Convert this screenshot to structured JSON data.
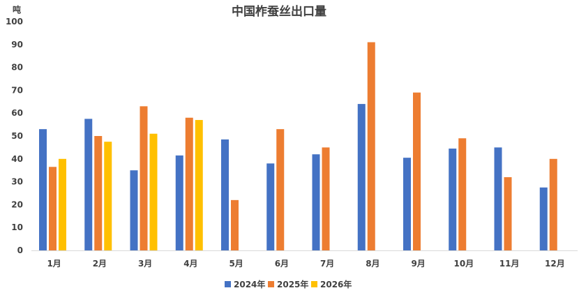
{
  "chart_data": {
    "type": "bar",
    "title": "中国柞蚕丝出口量",
    "unit": "吨",
    "xlabel": "",
    "ylabel": "",
    "ylim": [
      0,
      100
    ],
    "yticks": [
      0,
      10,
      20,
      30,
      40,
      50,
      60,
      70,
      80,
      90,
      100
    ],
    "grid": false,
    "legend_position": "bottom",
    "categories": [
      "1月",
      "2月",
      "3月",
      "4月",
      "5月",
      "6月",
      "7月",
      "8月",
      "9月",
      "10月",
      "11月",
      "12月"
    ],
    "series": [
      {
        "name": "2024年",
        "color": "#4472C4",
        "values": [
          53,
          57.5,
          35,
          41.5,
          48.5,
          38,
          42,
          64,
          40.5,
          44.5,
          45,
          27.5
        ]
      },
      {
        "name": "2025年",
        "color": "#ED7D31",
        "values": [
          36.5,
          50,
          63,
          58,
          22,
          53,
          45,
          91,
          69,
          49,
          32,
          40
        ]
      },
      {
        "name": "2026年",
        "color": "#FFC000",
        "values": [
          40,
          47.5,
          51,
          57,
          null,
          null,
          null,
          null,
          null,
          null,
          null,
          null
        ]
      }
    ]
  }
}
